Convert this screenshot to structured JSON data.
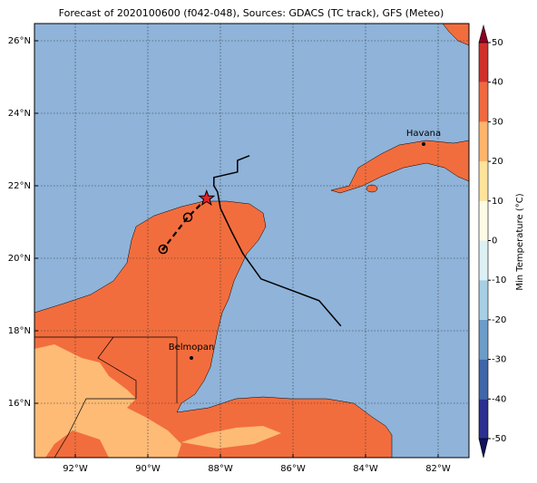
{
  "map": {
    "title": "Forecast of 2020100600 (f042-048), Sources: GDACS (TC track), GFS (Meteo)",
    "xlim": [
      -93.125,
      -81.15
    ],
    "ylim": [
      14.5,
      26.475
    ],
    "xticks": [
      {
        "value": -92,
        "label": "92°W"
      },
      {
        "value": -90,
        "label": "90°W"
      },
      {
        "value": -88,
        "label": "88°W"
      },
      {
        "value": -86,
        "label": "86°W"
      },
      {
        "value": -84,
        "label": "84°W"
      },
      {
        "value": -82,
        "label": "82°W"
      }
    ],
    "yticks": [
      {
        "value": 16,
        "label": "16°N"
      },
      {
        "value": 18,
        "label": "18°N"
      },
      {
        "value": 20,
        "label": "20°N"
      },
      {
        "value": 22,
        "label": "22°N"
      },
      {
        "value": 24,
        "label": "24°N"
      },
      {
        "value": 26,
        "label": "26°N"
      }
    ],
    "grid": true,
    "track": {
      "lon": [
        -84.68,
        -85.28,
        -86.88,
        -87.38,
        -87.7,
        -88.0,
        -88.08,
        -88.18,
        -88.18,
        -87.53,
        -87.53,
        -87.2
      ],
      "lat": [
        18.13,
        18.83,
        19.43,
        20.13,
        20.75,
        21.38,
        21.83,
        22.0,
        22.23,
        22.38,
        22.7,
        22.83
      ]
    },
    "forecast": {
      "lon": [
        -88.38,
        -88.9,
        -89.58
      ],
      "lat": [
        21.65,
        21.13,
        20.25
      ]
    },
    "cities": [
      {
        "name": "Havana",
        "lon": -82.4,
        "lat": 23.15
      },
      {
        "name": "Belmopan",
        "lon": -88.8,
        "lat": 17.25
      }
    ],
    "colorbar": {
      "label": "Min Temperature (°C)",
      "ticks": [
        -50,
        -40,
        -30,
        -20,
        -10,
        0,
        10,
        20,
        30,
        40,
        50
      ],
      "colors": [
        "#12125e",
        "#2b2f8f",
        "#3f66a9",
        "#6d9cc8",
        "#a6cfe4",
        "#ddf0f4",
        "#fdfbe6",
        "#fee39a",
        "#fdb46b",
        "#ef6a3e",
        "#d0302a",
        "#8c0024"
      ]
    }
  }
}
